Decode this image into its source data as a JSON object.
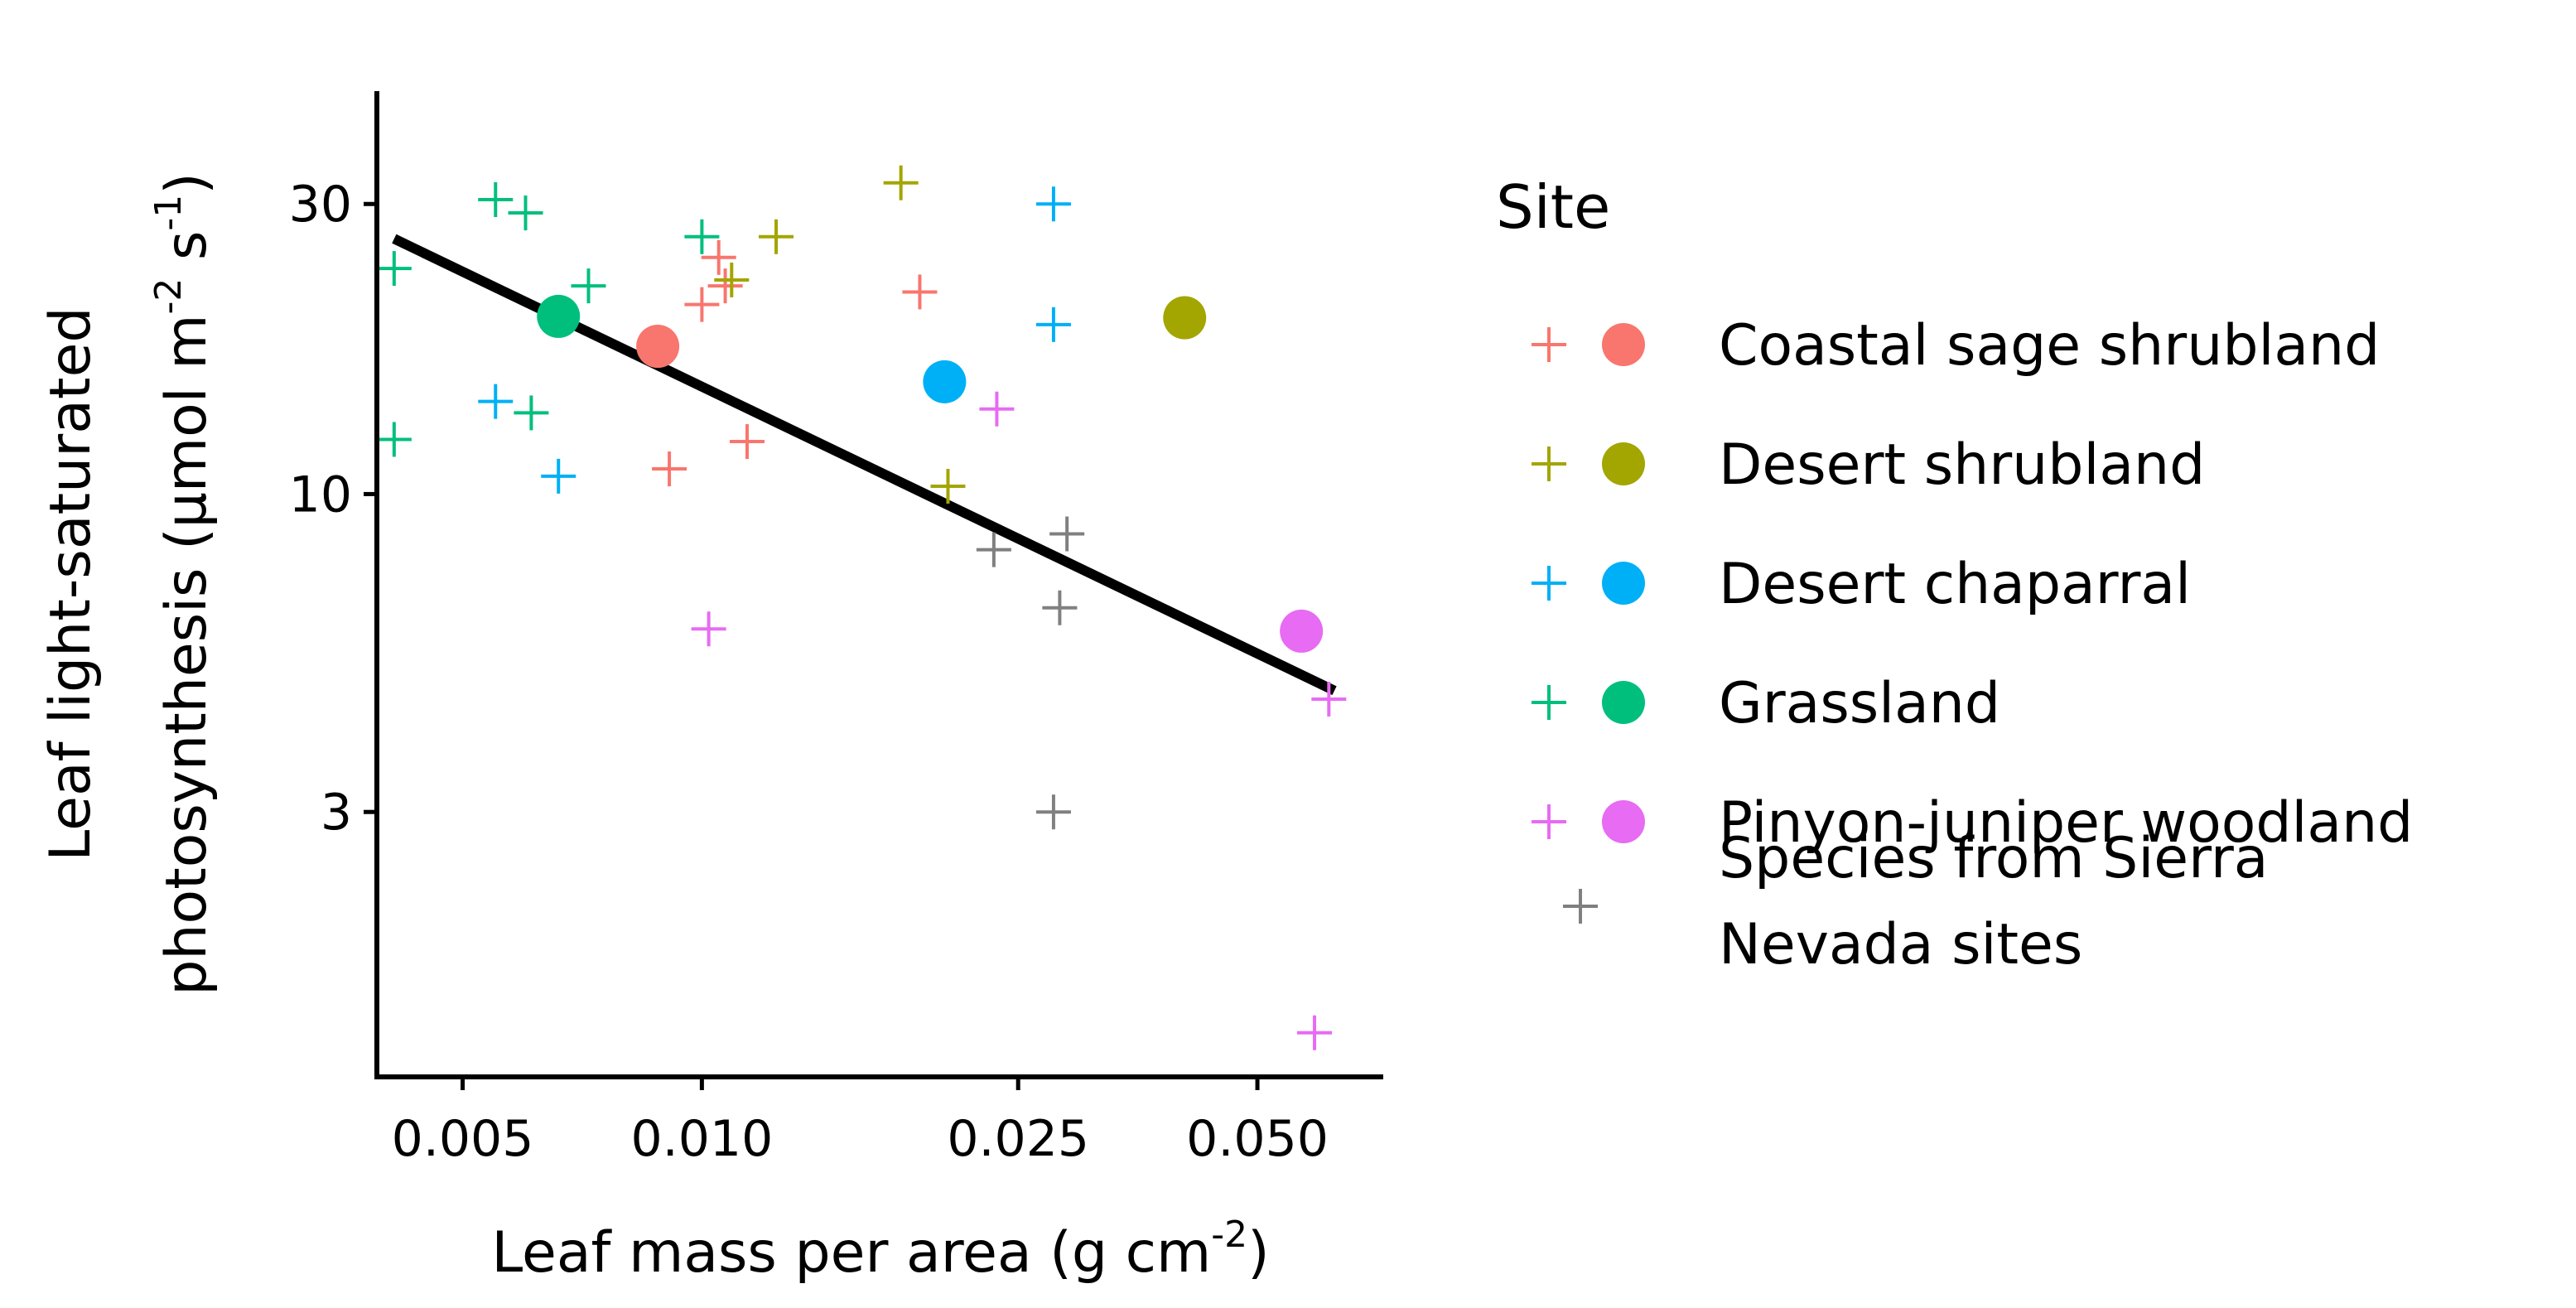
{
  "chart_data": {
    "type": "scatter",
    "x_scale": "log",
    "y_scale": "log",
    "xlabel": "Leaf mass per area (g cm",
    "xlabel_sup": "-2",
    "xlabel_end": ")",
    "ylabel_line1": "Leaf light-saturated",
    "ylabel_line2_a": "photosynthesis  (μmol m",
    "ylabel_line2_sup1": "-2",
    "ylabel_line2_b": " s",
    "ylabel_line2_sup2": "-1",
    "ylabel_line2_c": ")",
    "xlim": [
      0.0039,
      0.072
    ],
    "ylim": [
      1.1,
      46
    ],
    "x_ticks": [
      {
        "value": 0.005,
        "label": "0.005"
      },
      {
        "value": 0.01,
        "label": "0.010"
      },
      {
        "value": 0.025,
        "label": "0.025"
      },
      {
        "value": 0.05,
        "label": "0.050"
      }
    ],
    "y_ticks": [
      {
        "value": 3,
        "label": "3"
      },
      {
        "value": 10,
        "label": "10"
      },
      {
        "value": 30,
        "label": "30"
      }
    ],
    "legend_title": "Site",
    "legend_position": "right",
    "series": [
      {
        "name": "Coastal sage shrubland",
        "color": "#F8766D",
        "points": [
          [
            0.0105,
            24.5
          ],
          [
            0.01,
            20.5
          ],
          [
            0.0107,
            22.0
          ],
          [
            0.0188,
            21.5
          ],
          [
            0.0091,
            11.0
          ],
          [
            0.0114,
            12.2
          ]
        ],
        "mean": [
          0.0088,
          17.5
        ]
      },
      {
        "name": "Desert shrubland",
        "color": "#A3A500",
        "points": [
          [
            0.0178,
            32.5
          ],
          [
            0.0124,
            26.5
          ],
          [
            0.0109,
            22.5
          ],
          [
            0.0204,
            10.3
          ]
        ],
        "mean": [
          0.0405,
          19.5
        ]
      },
      {
        "name": "Desert chaparral",
        "color": "#00B0F6",
        "points": [
          [
            0.0277,
            30.0
          ],
          [
            0.0277,
            19.0
          ],
          [
            0.0055,
            14.2
          ],
          [
            0.0066,
            10.7
          ]
        ],
        "mean": [
          0.0202,
          15.3
        ]
      },
      {
        "name": "Grassland",
        "color": "#00BF7D",
        "points": [
          [
            0.0055,
            30.5
          ],
          [
            0.006,
            29.0
          ],
          [
            0.01,
            26.5
          ],
          [
            0.0041,
            23.5
          ],
          [
            0.0072,
            22.0
          ],
          [
            0.0041,
            12.3
          ],
          [
            0.0061,
            13.6
          ]
        ],
        "mean": [
          0.0066,
          19.6
        ]
      },
      {
        "name": "Pinyon-juniper woodland",
        "color": "#E76BF3",
        "points": [
          [
            0.0235,
            13.8
          ],
          [
            0.0102,
            6.0
          ],
          [
            0.0615,
            4.6
          ],
          [
            0.059,
            1.3
          ]
        ],
        "mean": [
          0.0568,
          5.95
        ]
      },
      {
        "name": "Species from Sierra Nevada sites",
        "color": "#808080",
        "points": [
          [
            0.0233,
            8.1
          ],
          [
            0.0288,
            8.6
          ],
          [
            0.0282,
            6.5
          ],
          [
            0.0277,
            3.0
          ]
        ],
        "mean": null
      }
    ],
    "trend_line": {
      "x": [
        0.0041,
        0.0625
      ],
      "y": [
        26.3,
        4.75
      ],
      "color": "#000000"
    },
    "legend_labels": [
      {
        "line1": "Coastal sage shrubland"
      },
      {
        "line1": "Desert shrubland"
      },
      {
        "line1": "Desert chaparral"
      },
      {
        "line1": "Grassland"
      },
      {
        "line1": "Pinyon-juniper woodland"
      },
      {
        "line1": "Species from Sierra",
        "line2": "Nevada sites"
      }
    ]
  }
}
